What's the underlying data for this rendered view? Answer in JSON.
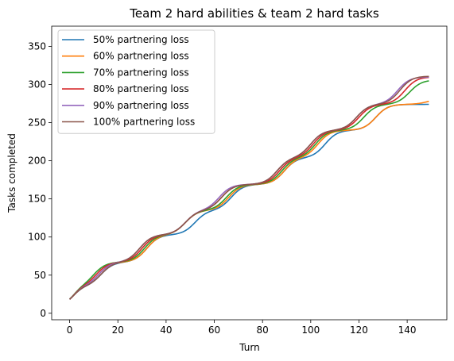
{
  "chart_data": {
    "type": "line",
    "title": "Team 2 hard abilities & team 2 hard tasks",
    "xlabel": "Turn",
    "ylabel": "Tasks completed",
    "xlim": [
      -7.45,
      156.45
    ],
    "ylim": [
      -8.5,
      376.5
    ],
    "xticks": [
      0,
      20,
      40,
      60,
      80,
      100,
      120,
      140
    ],
    "yticks": [
      0,
      50,
      100,
      150,
      200,
      250,
      300,
      350
    ],
    "grid": false,
    "legend_position": "upper-left",
    "steps": [
      {
        "pre": 10,
        "post": 35,
        "w": 2
      },
      {
        "pre": 40,
        "post": 72,
        "w": 2.5
      },
      {
        "pre": 80,
        "post": 116,
        "w": 2.5
      },
      {
        "pre": 120,
        "post": 152,
        "w": 2.5
      },
      {
        "pre": 160,
        "post": 194,
        "w": 2.5
      },
      {
        "pre": 200,
        "post": 235,
        "w": 2.5
      },
      {
        "pre": 240,
        "post": 276,
        "w": 2.5
      },
      {
        "pre": 280,
        "post": 314,
        "w": 2.5
      },
      {
        "pre": 320,
        "post": 355,
        "w": 2.5
      }
    ],
    "series": [
      {
        "name": "50% partnering loss",
        "color": "#1f77b4",
        "centers": [
          1.5,
          13,
          32,
          52,
          67,
          89,
          106,
          127,
          158
        ],
        "final": 320
      },
      {
        "name": "60% partnering loss",
        "color": "#ff7f0e",
        "centers": [
          1.5,
          12,
          32,
          48,
          66,
          89,
          103,
          127,
          149
        ],
        "final": 328
      },
      {
        "name": "70% partnering loss",
        "color": "#2ca02c",
        "centers": [
          1.5,
          10,
          31,
          48,
          65,
          88,
          102,
          122,
          141
        ],
        "final": 352
      },
      {
        "name": "80% partnering loss",
        "color": "#d62728",
        "centers": [
          1.5,
          11,
          30,
          48,
          63,
          87,
          101,
          120,
          139
        ],
        "final": 356
      },
      {
        "name": "90% partnering loss",
        "color": "#9467bd",
        "centers": [
          1.5,
          12,
          29,
          48,
          62,
          86,
          100,
          119,
          136
        ],
        "final": 356
      },
      {
        "name": "100% partnering loss",
        "color": "#8c564b",
        "centers": [
          1.5,
          13,
          29,
          48,
          63,
          86,
          100,
          119,
          137
        ],
        "final": 357
      }
    ]
  }
}
